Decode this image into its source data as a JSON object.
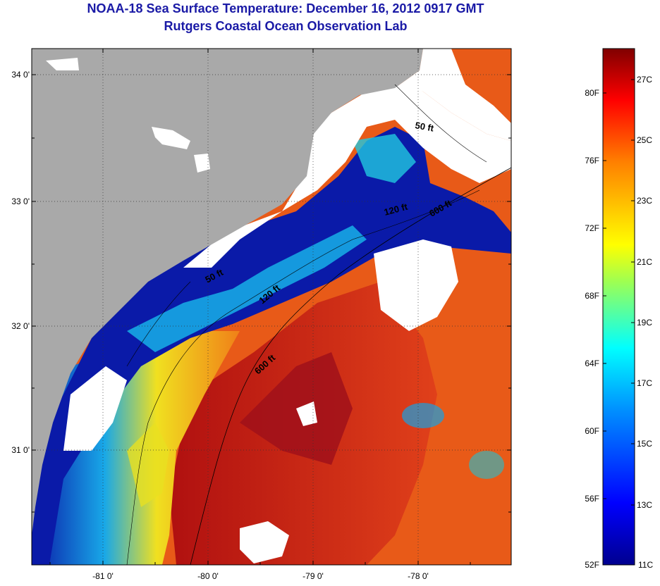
{
  "header": {
    "title": "NOAA-18 Sea Surface Temperature:  December 16, 2012 0917 GMT",
    "subtitle": "Rutgers Coastal Ocean Observation Lab"
  },
  "map": {
    "latitude_labels": [
      "34 0'",
      "33 0'",
      "32 0'",
      "31 0'"
    ],
    "longitude_labels": [
      "-81 0'",
      "-80 0'",
      "-79 0'",
      "-78 0'"
    ],
    "contour_labels": [
      "50 ft",
      "120 ft",
      "600 ft",
      "50 ft",
      "120 ft",
      "600 ft"
    ],
    "colors": {
      "land": "#a9a9a9",
      "cloud": "#ffffff",
      "cold": "#0a1aa8",
      "warm": "#d42a10"
    }
  },
  "colorbar": {
    "fahrenheit_labels": [
      "80F",
      "76F",
      "72F",
      "68F",
      "64F",
      "60F",
      "56F",
      "52F"
    ],
    "celsius_labels": [
      "27C",
      "25C",
      "23C",
      "21C",
      "19C",
      "17C",
      "15C",
      "13C",
      "11C"
    ]
  }
}
